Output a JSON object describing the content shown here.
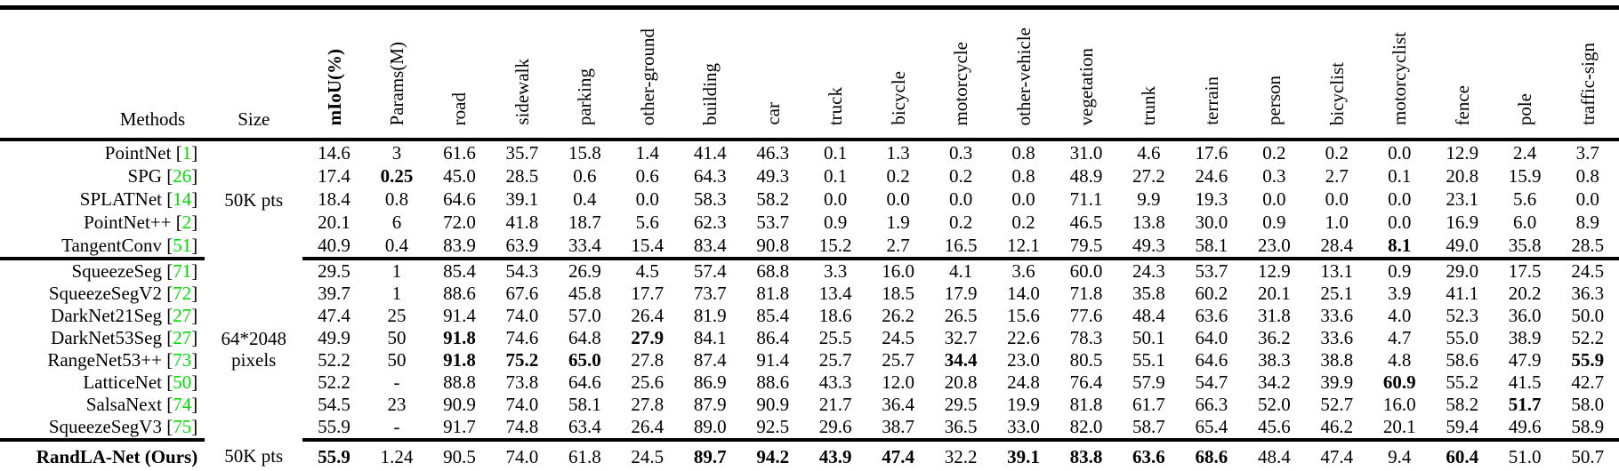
{
  "table": {
    "header": {
      "methods_label": "Methods",
      "size_label": "Size",
      "columns": [
        {
          "label": "mIoU(%)",
          "bold": true
        },
        {
          "label": "Params(M)",
          "bold": false
        },
        {
          "label": "road",
          "bold": false
        },
        {
          "label": "sidewalk",
          "bold": false
        },
        {
          "label": "parking",
          "bold": false
        },
        {
          "label": "other-ground",
          "bold": false
        },
        {
          "label": "building",
          "bold": false
        },
        {
          "label": "car",
          "bold": false
        },
        {
          "label": "truck",
          "bold": false
        },
        {
          "label": "bicycle",
          "bold": false
        },
        {
          "label": "motorcycle",
          "bold": false
        },
        {
          "label": "other-vehicle",
          "bold": false
        },
        {
          "label": "vegetation",
          "bold": false
        },
        {
          "label": "trunk",
          "bold": false
        },
        {
          "label": "terrain",
          "bold": false
        },
        {
          "label": "person",
          "bold": false
        },
        {
          "label": "bicyclist",
          "bold": false
        },
        {
          "label": "motorcyclist",
          "bold": false
        },
        {
          "label": "fence",
          "bold": false
        },
        {
          "label": "pole",
          "bold": false
        },
        {
          "label": "traffic-sign",
          "bold": false
        }
      ]
    },
    "groups": [
      {
        "size_lines": [
          "50K pts"
        ],
        "rows": [
          {
            "method": "PointNet",
            "cite": "1",
            "values": [
              "14.6",
              "3",
              "61.6",
              "35.7",
              "15.8",
              "1.4",
              "41.4",
              "46.3",
              "0.1",
              "1.3",
              "0.3",
              "0.8",
              "31.0",
              "4.6",
              "17.6",
              "0.2",
              "0.2",
              "0.0",
              "12.9",
              "2.4",
              "3.7"
            ],
            "bold_idx": []
          },
          {
            "method": "SPG",
            "cite": "26",
            "values": [
              "17.4",
              "0.25",
              "45.0",
              "28.5",
              "0.6",
              "0.6",
              "64.3",
              "49.3",
              "0.1",
              "0.2",
              "0.2",
              "0.8",
              "48.9",
              "27.2",
              "24.6",
              "0.3",
              "2.7",
              "0.1",
              "20.8",
              "15.9",
              "0.8"
            ],
            "bold_idx": [
              1
            ]
          },
          {
            "method": "SPLATNet",
            "cite": "14",
            "values": [
              "18.4",
              "0.8",
              "64.6",
              "39.1",
              "0.4",
              "0.0",
              "58.3",
              "58.2",
              "0.0",
              "0.0",
              "0.0",
              "0.0",
              "71.1",
              "9.9",
              "19.3",
              "0.0",
              "0.0",
              "0.0",
              "23.1",
              "5.6",
              "0.0"
            ],
            "bold_idx": []
          },
          {
            "method": "PointNet++",
            "cite": "2",
            "values": [
              "20.1",
              "6",
              "72.0",
              "41.8",
              "18.7",
              "5.6",
              "62.3",
              "53.7",
              "0.9",
              "1.9",
              "0.2",
              "0.2",
              "46.5",
              "13.8",
              "30.0",
              "0.9",
              "1.0",
              "0.0",
              "16.9",
              "6.0",
              "8.9"
            ],
            "bold_idx": []
          },
          {
            "method": "TangentConv",
            "cite": "51",
            "values": [
              "40.9",
              "0.4",
              "83.9",
              "63.9",
              "33.4",
              "15.4",
              "83.4",
              "90.8",
              "15.2",
              "2.7",
              "16.5",
              "12.1",
              "79.5",
              "49.3",
              "58.1",
              "23.0",
              "28.4",
              "8.1",
              "49.0",
              "35.8",
              "28.5"
            ],
            "bold_idx": [
              17
            ]
          }
        ]
      },
      {
        "size_lines": [
          "64*2048",
          "pixels"
        ],
        "rows": [
          {
            "method": "SqueezeSeg",
            "cite": "71",
            "values": [
              "29.5",
              "1",
              "85.4",
              "54.3",
              "26.9",
              "4.5",
              "57.4",
              "68.8",
              "3.3",
              "16.0",
              "4.1",
              "3.6",
              "60.0",
              "24.3",
              "53.7",
              "12.9",
              "13.1",
              "0.9",
              "29.0",
              "17.5",
              "24.5"
            ],
            "bold_idx": []
          },
          {
            "method": "SqueezeSegV2",
            "cite": "72",
            "values": [
              "39.7",
              "1",
              "88.6",
              "67.6",
              "45.8",
              "17.7",
              "73.7",
              "81.8",
              "13.4",
              "18.5",
              "17.9",
              "14.0",
              "71.8",
              "35.8",
              "60.2",
              "20.1",
              "25.1",
              "3.9",
              "41.1",
              "20.2",
              "36.3"
            ],
            "bold_idx": []
          },
          {
            "method": "DarkNet21Seg",
            "cite": "27",
            "values": [
              "47.4",
              "25",
              "91.4",
              "74.0",
              "57.0",
              "26.4",
              "81.9",
              "85.4",
              "18.6",
              "26.2",
              "26.5",
              "15.6",
              "77.6",
              "48.4",
              "63.6",
              "31.8",
              "33.6",
              "4.0",
              "52.3",
              "36.0",
              "50.0"
            ],
            "bold_idx": []
          },
          {
            "method": "DarkNet53Seg",
            "cite": "27",
            "values": [
              "49.9",
              "50",
              "91.8",
              "74.6",
              "64.8",
              "27.9",
              "84.1",
              "86.4",
              "25.5",
              "24.5",
              "32.7",
              "22.6",
              "78.3",
              "50.1",
              "64.0",
              "36.2",
              "33.6",
              "4.7",
              "55.0",
              "38.9",
              "52.2"
            ],
            "bold_idx": [
              2,
              5
            ]
          },
          {
            "method": "RangeNet53++",
            "cite": "73",
            "values": [
              "52.2",
              "50",
              "91.8",
              "75.2",
              "65.0",
              "27.8",
              "87.4",
              "91.4",
              "25.7",
              "25.7",
              "34.4",
              "23.0",
              "80.5",
              "55.1",
              "64.6",
              "38.3",
              "38.8",
              "4.8",
              "58.6",
              "47.9",
              "55.9"
            ],
            "bold_idx": [
              2,
              3,
              4,
              10,
              20
            ]
          },
          {
            "method": "LatticeNet",
            "cite": "50",
            "values": [
              "52.2",
              "-",
              "88.8",
              "73.8",
              "64.6",
              "25.6",
              "86.9",
              "88.6",
              "43.3",
              "12.0",
              "20.8",
              "24.8",
              "76.4",
              "57.9",
              "54.7",
              "34.2",
              "39.9",
              "60.9",
              "55.2",
              "41.5",
              "42.7"
            ],
            "bold_idx": [
              17
            ]
          },
          {
            "method": "SalsaNext",
            "cite": "74",
            "values": [
              "54.5",
              "23",
              "90.9",
              "74.0",
              "58.1",
              "27.8",
              "87.9",
              "90.9",
              "21.7",
              "36.4",
              "29.5",
              "19.9",
              "81.8",
              "61.7",
              "66.3",
              "52.0",
              "52.7",
              "16.0",
              "58.2",
              "51.7",
              "58.0"
            ],
            "bold_idx": [
              19
            ]
          },
          {
            "method": "SqueezeSegV3",
            "cite": "75",
            "values": [
              "55.9",
              "-",
              "91.7",
              "74.8",
              "63.4",
              "26.4",
              "89.0",
              "92.5",
              "29.6",
              "38.7",
              "36.5",
              "33.0",
              "82.0",
              "58.7",
              "65.4",
              "45.6",
              "46.2",
              "20.1",
              "59.4",
              "49.6",
              "58.9"
            ],
            "bold_idx": []
          }
        ]
      }
    ],
    "final_row": {
      "method": "RandLA-Net (Ours)",
      "size_lines": [
        "50K pts"
      ],
      "values": [
        "55.9",
        "1.24",
        "90.5",
        "74.0",
        "61.8",
        "24.5",
        "89.7",
        "94.2",
        "43.9",
        "47.4",
        "32.2",
        "39.1",
        "83.8",
        "63.6",
        "68.6",
        "48.4",
        "47.4",
        "9.4",
        "60.4",
        "51.0",
        "50.7"
      ],
      "bold_idx": [
        0,
        6,
        7,
        8,
        9,
        11,
        12,
        13,
        14,
        18
      ]
    }
  },
  "colors": {
    "citation_green": "#00dd00",
    "text": "#000000",
    "background": "#ffffff"
  },
  "layout_hints": {
    "bracket_open": "[",
    "bracket_close": "]"
  }
}
